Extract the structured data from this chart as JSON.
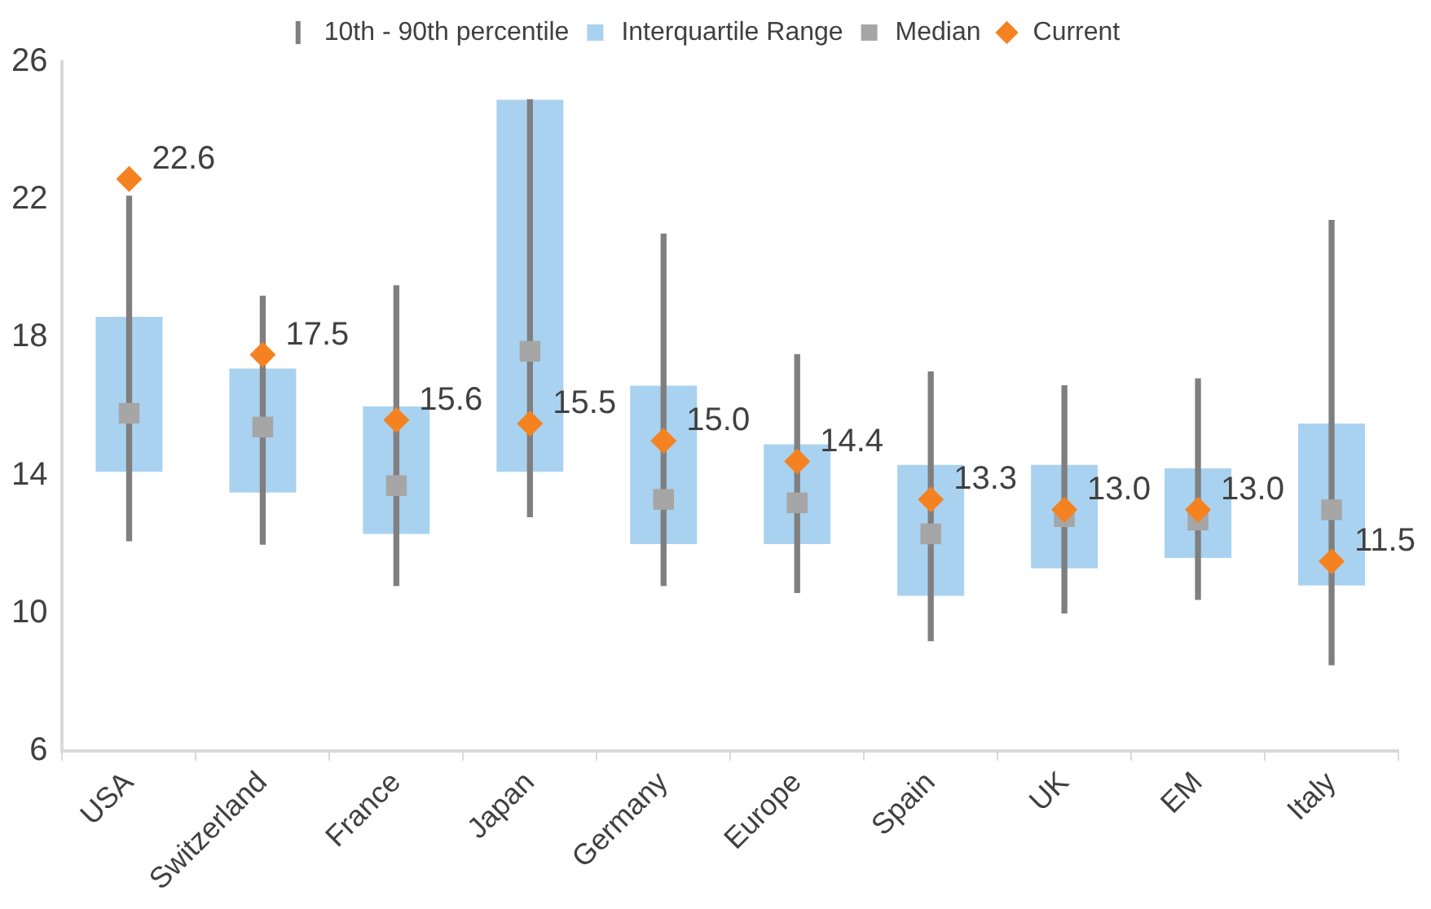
{
  "chart_data": {
    "type": "bar",
    "categories": [
      "USA",
      "Switzerland",
      "France",
      "Japan",
      "Germany",
      "Europe",
      "Spain",
      "UK",
      "EM",
      "Italy"
    ],
    "ylim": [
      6,
      26
    ],
    "yticks": [
      6,
      10,
      14,
      18,
      22,
      26
    ],
    "grid": false,
    "legend": "top",
    "series": [
      {
        "name": "10th - 90th percentile",
        "color": "#7f7f7f",
        "base": [
          12.1,
          12.0,
          10.8,
          12.8,
          10.8,
          10.6,
          9.2,
          10.0,
          10.4,
          8.5
        ],
        "values": [
          10.0,
          7.2,
          8.7,
          12.1,
          10.2,
          6.9,
          7.8,
          6.6,
          6.4,
          12.9
        ]
      },
      {
        "name": "Interquartile Range",
        "color": "#a9d2f0",
        "base": [
          14.1,
          13.5,
          12.3,
          14.1,
          12.0,
          12.0,
          10.5,
          11.3,
          11.6,
          10.8
        ],
        "values": [
          4.5,
          3.6,
          3.7,
          10.8,
          4.6,
          2.9,
          3.8,
          3.0,
          2.6,
          4.7
        ]
      },
      {
        "name": "Median",
        "type": "scatter",
        "marker": "square",
        "color": "#a6a6a6",
        "x": [
          "USA",
          "Switzerland",
          "France",
          "Japan",
          "Germany",
          "Europe",
          "Spain",
          "UK",
          "EM",
          "Italy"
        ],
        "values": [
          15.8,
          15.4,
          13.7,
          17.6,
          13.3,
          13.2,
          12.3,
          12.8,
          12.7,
          13.0
        ]
      },
      {
        "name": "Current",
        "type": "scatter",
        "marker": "diamond",
        "color": "#f58220",
        "x": [
          "USA",
          "Switzerland",
          "France",
          "Japan",
          "Germany",
          "Europe",
          "Spain",
          "UK",
          "EM",
          "Italy"
        ],
        "values": [
          22.6,
          17.5,
          15.6,
          15.5,
          15.0,
          14.4,
          13.3,
          13.0,
          13.0,
          11.5
        ],
        "value_labels": [
          "22.6",
          "17.5",
          "15.6",
          "15.5",
          "15.0",
          "14.4",
          "13.3",
          "13.0",
          "13.0",
          "11.5"
        ]
      }
    ]
  }
}
